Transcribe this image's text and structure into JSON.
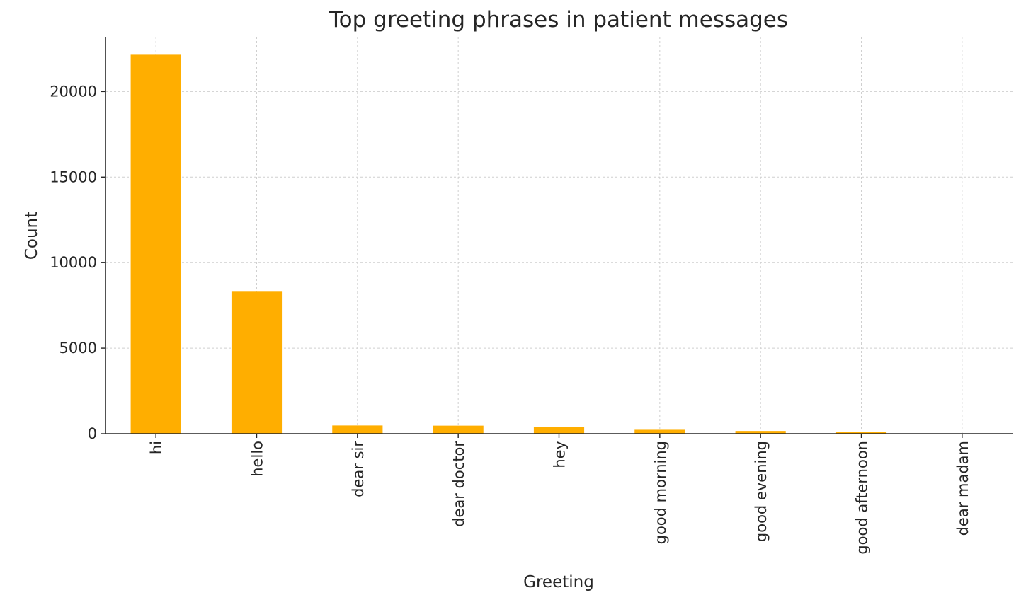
{
  "chart_data": {
    "type": "bar",
    "title": "Top greeting phrases in patient messages",
    "xlabel": "Greeting",
    "ylabel": "Count",
    "categories": [
      "hi",
      "hello",
      "dear sir",
      "dear doctor",
      "hey",
      "good morning",
      "good evening",
      "good afternoon",
      "dear madam"
    ],
    "values": [
      22150,
      8300,
      480,
      470,
      400,
      230,
      160,
      110,
      15
    ],
    "yticks": [
      0,
      5000,
      10000,
      15000,
      20000
    ],
    "ylim": [
      0,
      23200
    ],
    "bar_color": "#FFAE00",
    "grid": true,
    "legend": "none"
  }
}
